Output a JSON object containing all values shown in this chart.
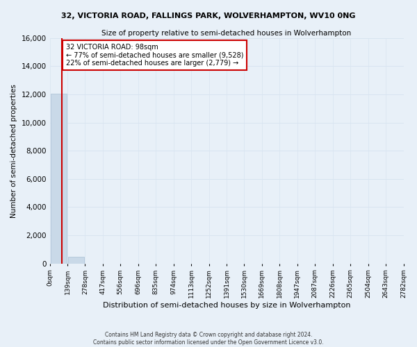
{
  "title": "32, VICTORIA ROAD, FALLINGS PARK, WOLVERHAMPTON, WV10 0NG",
  "subtitle": "Size of property relative to semi-detached houses in Wolverhampton",
  "xlabel": "Distribution of semi-detached houses by size in Wolverhampton",
  "ylabel": "Number of semi-detached properties",
  "footer_line1": "Contains HM Land Registry data © Crown copyright and database right 2024.",
  "footer_line2": "Contains public sector information licensed under the Open Government Licence v3.0.",
  "property_size": 98,
  "property_label": "32 VICTORIA ROAD: 98sqm",
  "pct_smaller": 77,
  "count_smaller": 9528,
  "pct_larger": 22,
  "count_larger": 2779,
  "bin_edges": [
    0,
    139,
    278,
    417,
    556,
    696,
    835,
    974,
    1113,
    1252,
    1391,
    1530,
    1669,
    1808,
    1947,
    2087,
    2226,
    2365,
    2504,
    2643,
    2782
  ],
  "bin_counts": [
    12050,
    480,
    0,
    0,
    0,
    0,
    0,
    0,
    0,
    0,
    0,
    0,
    0,
    0,
    0,
    0,
    0,
    0,
    0,
    0
  ],
  "bar_color": "#c9d9e8",
  "bar_edgecolor": "#a8c0d4",
  "grid_color": "#d8e4f0",
  "annotation_box_color": "#cc0000",
  "annotation_bg": "#ffffff",
  "ylim": [
    0,
    16000
  ],
  "yticks": [
    0,
    2000,
    4000,
    6000,
    8000,
    10000,
    12000,
    14000,
    16000
  ],
  "bg_color": "#e8f0f8",
  "plot_bg_color": "#e8f0f8"
}
